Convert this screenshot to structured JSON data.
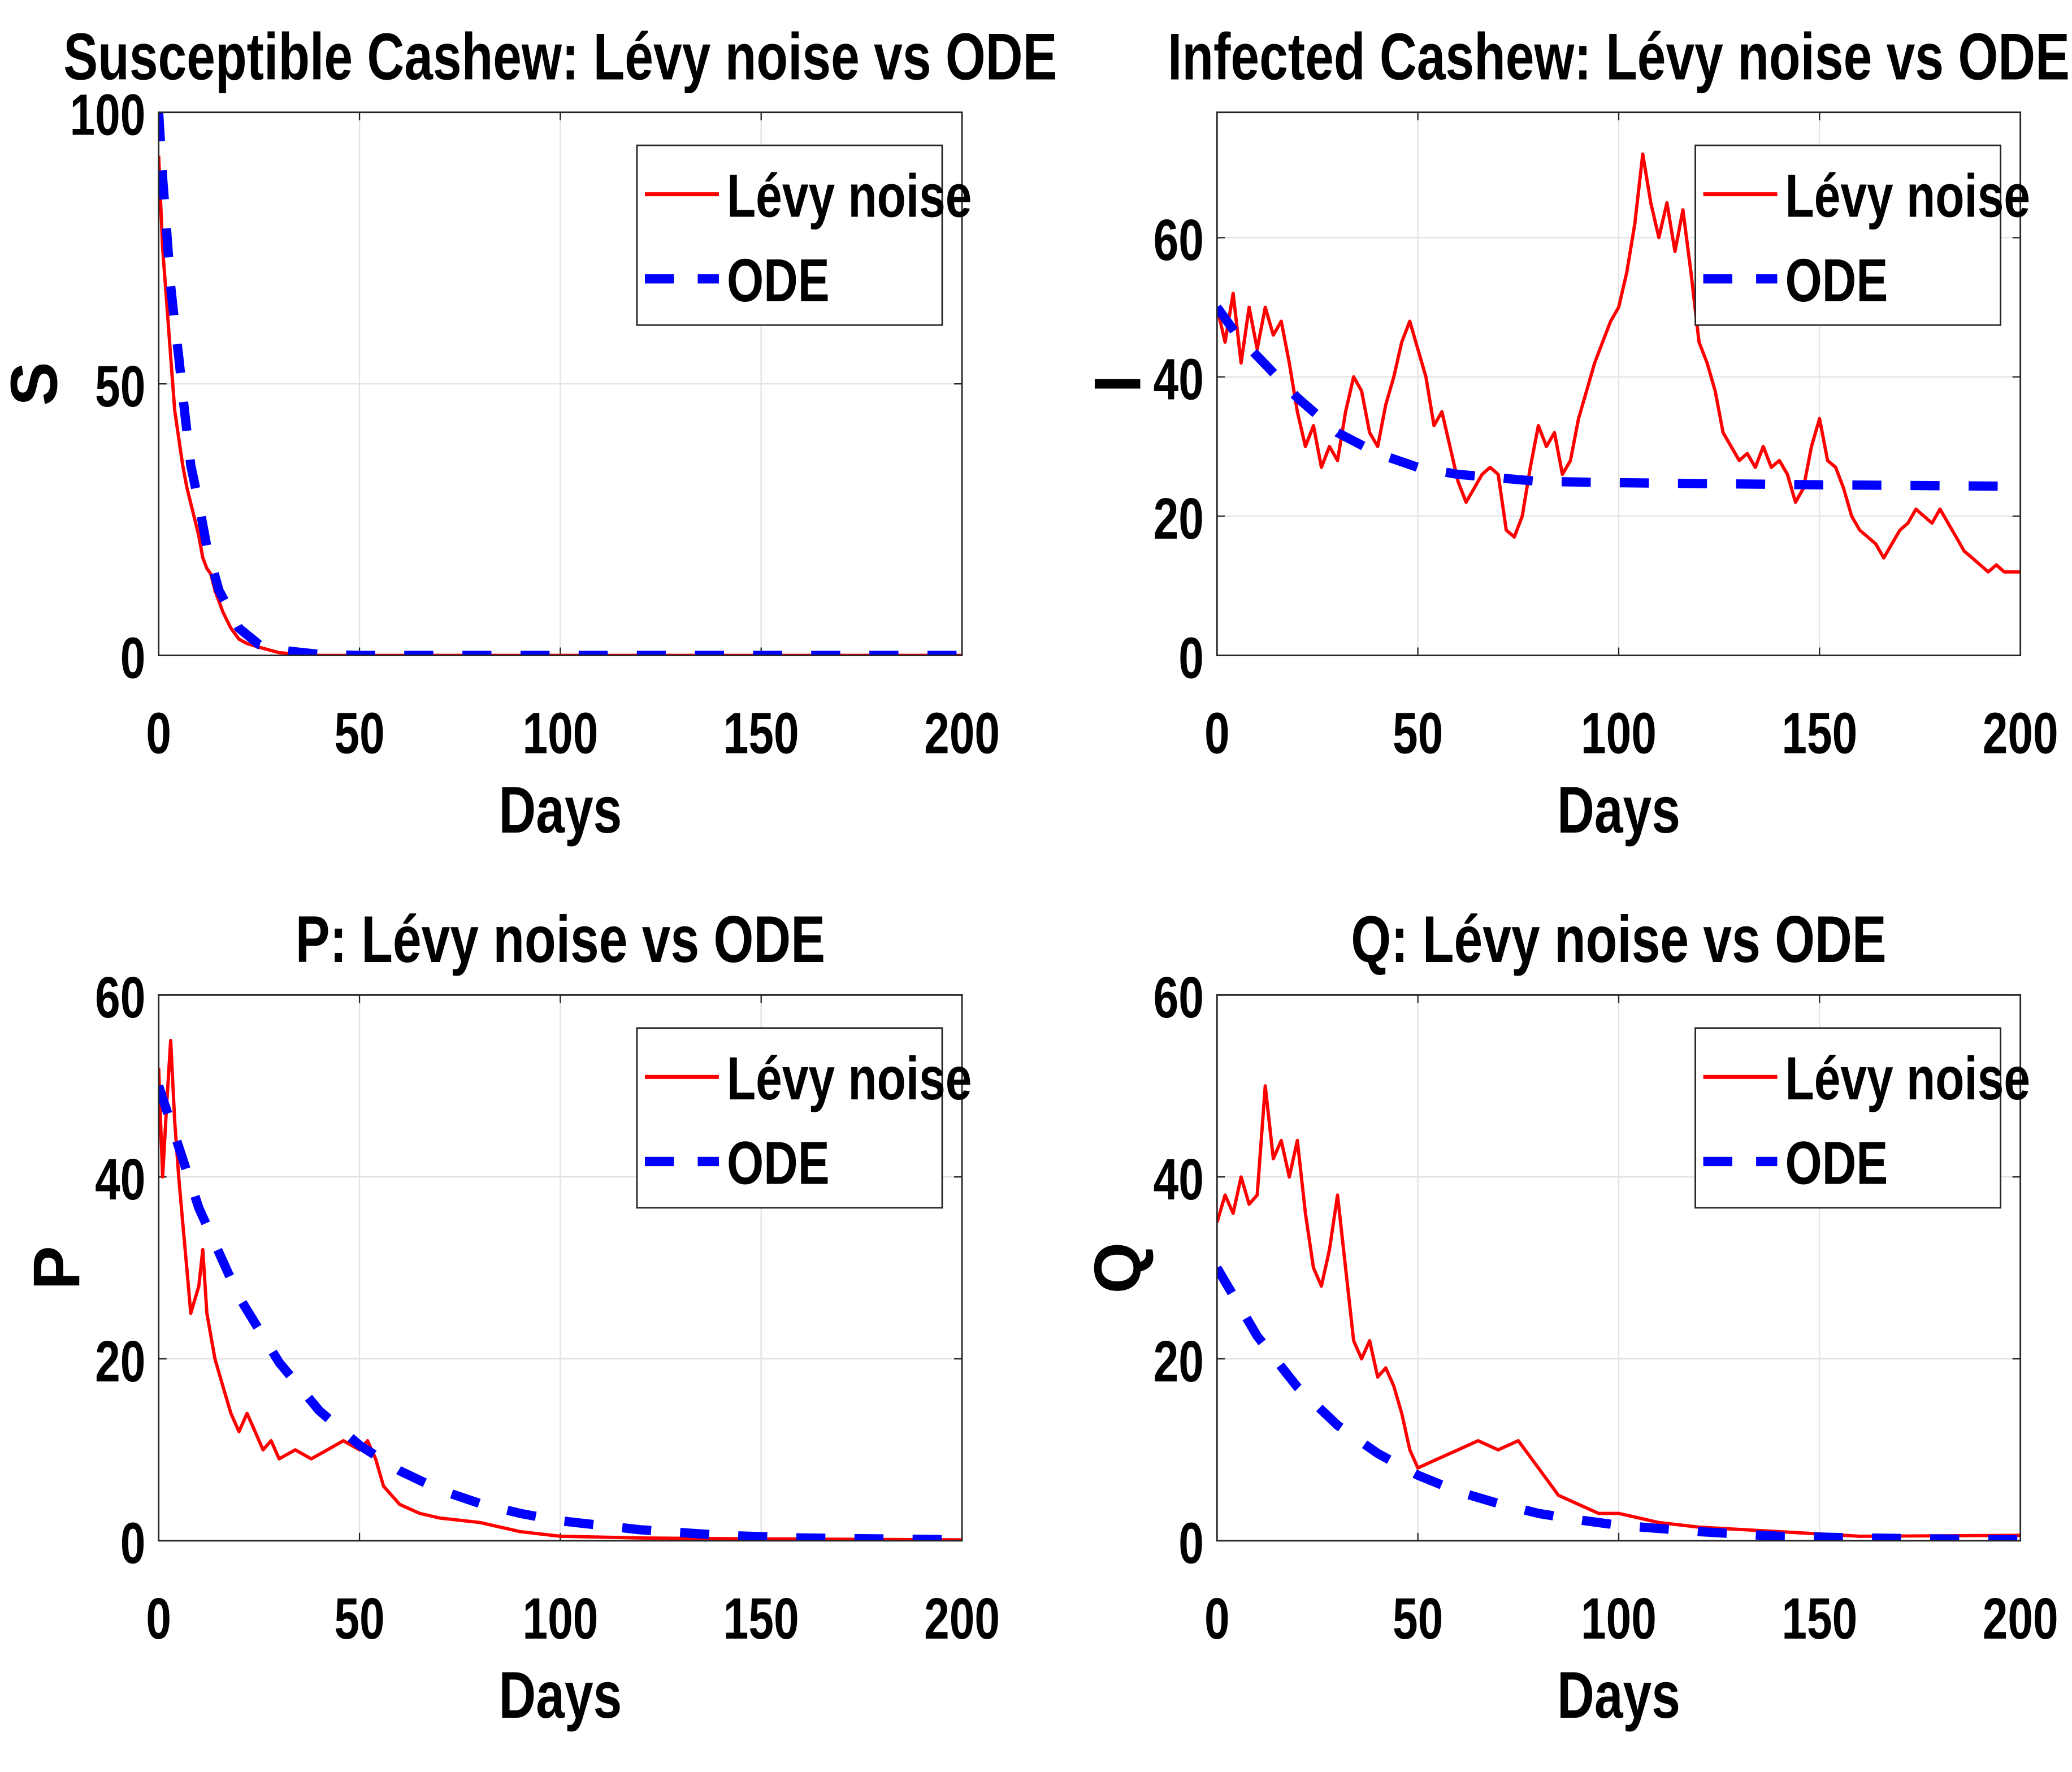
{
  "chart_data": [
    {
      "type": "line",
      "title": "Susceptible Cashew: Lévy noise vs ODE",
      "xlabel": "Days",
      "ylabel": "S",
      "xlim": [
        0,
        200
      ],
      "ylim": [
        0,
        100
      ],
      "xticks": [
        0,
        50,
        100,
        150,
        200
      ],
      "yticks": [
        0,
        50,
        100
      ],
      "grid": true,
      "legend_position": "top-right",
      "series": [
        {
          "name": "Lévy noise",
          "color": "#ff0000",
          "style": "solid",
          "x": [
            0,
            1,
            2,
            3,
            4,
            5,
            6,
            7,
            8,
            9,
            10,
            11,
            12,
            13,
            14,
            16,
            18,
            20,
            22,
            25,
            30,
            35,
            40,
            50,
            60,
            80,
            100,
            150,
            200
          ],
          "y": [
            92,
            75,
            65,
            55,
            45,
            40,
            35,
            31,
            28,
            25,
            22,
            18,
            16,
            15,
            12,
            8,
            5,
            3,
            2.2,
            1.5,
            0.5,
            0.2,
            0,
            0,
            0,
            0,
            0,
            0,
            0
          ]
        },
        {
          "name": "ODE",
          "color": "#0000ff",
          "style": "dashed",
          "x": [
            0,
            1,
            2,
            3,
            4,
            5,
            6,
            8,
            10,
            12,
            15,
            20,
            25,
            30,
            40,
            50,
            60,
            100,
            150,
            200
          ],
          "y": [
            100,
            88,
            78,
            68,
            61,
            55,
            48,
            35,
            28,
            20,
            12,
            5,
            2,
            1,
            0.2,
            0,
            0,
            0,
            0,
            0
          ]
        }
      ]
    },
    {
      "type": "line",
      "title": "Infected Cashew: Lévy noise vs ODE",
      "xlabel": "Days",
      "ylabel": "I",
      "xlim": [
        0,
        200
      ],
      "ylim": [
        0,
        78
      ],
      "xticks": [
        0,
        50,
        100,
        150,
        200
      ],
      "yticks": [
        0,
        20,
        40,
        60
      ],
      "grid": true,
      "legend_position": "top-right",
      "series": [
        {
          "name": "Lévy noise",
          "color": "#ff0000",
          "style": "solid",
          "x": [
            0,
            2,
            4,
            6,
            8,
            10,
            12,
            14,
            16,
            18,
            20,
            22,
            24,
            26,
            28,
            30,
            32,
            34,
            36,
            38,
            40,
            42,
            44,
            46,
            48,
            50,
            52,
            54,
            56,
            58,
            60,
            62,
            64,
            66,
            68,
            70,
            72,
            74,
            76,
            78,
            80,
            82,
            84,
            86,
            88,
            90,
            92,
            94,
            96,
            98,
            100,
            102,
            104,
            106,
            108,
            110,
            112,
            114,
            116,
            118,
            120,
            122,
            124,
            126,
            128,
            130,
            132,
            134,
            136,
            138,
            140,
            142,
            144,
            146,
            148,
            150,
            152,
            154,
            156,
            158,
            160,
            162,
            164,
            166,
            168,
            170,
            172,
            174,
            176,
            178,
            180,
            182,
            184,
            186,
            188,
            190,
            192,
            194,
            196,
            198,
            200
          ],
          "y": [
            50,
            45,
            52,
            42,
            50,
            44,
            50,
            46,
            48,
            42,
            35,
            30,
            33,
            27,
            30,
            28,
            35,
            40,
            38,
            32,
            30,
            36,
            40,
            45,
            48,
            44,
            40,
            33,
            35,
            30,
            25,
            22,
            24,
            26,
            27,
            26,
            18,
            17,
            20,
            27,
            33,
            30,
            32,
            26,
            28,
            34,
            38,
            42,
            45,
            48,
            50,
            55,
            62,
            72,
            65,
            60,
            65,
            58,
            64,
            55,
            45,
            42,
            38,
            32,
            30,
            28,
            29,
            27,
            30,
            27,
            28,
            26,
            22,
            24,
            30,
            34,
            28,
            27,
            24,
            20,
            18,
            17,
            16,
            14,
            16,
            18,
            19,
            21,
            20,
            19,
            21,
            19,
            17,
            15,
            14,
            13,
            12,
            13,
            12,
            12,
            12
          ]
        },
        {
          "name": "ODE",
          "color": "#0000ff",
          "style": "dashed",
          "x": [
            0,
            5,
            10,
            15,
            20,
            30,
            40,
            50,
            60,
            70,
            80,
            100,
            150,
            200
          ],
          "y": [
            50,
            46,
            43,
            40,
            37,
            32,
            29,
            27,
            26,
            25.5,
            25,
            24.8,
            24.5,
            24.3
          ]
        }
      ]
    },
    {
      "type": "line",
      "title": "P: Lévy noise vs ODE",
      "xlabel": "Days",
      "ylabel": "P",
      "xlim": [
        0,
        200
      ],
      "ylim": [
        0,
        60
      ],
      "xticks": [
        0,
        50,
        100,
        150,
        200
      ],
      "yticks": [
        0,
        20,
        40,
        60
      ],
      "grid": true,
      "legend_position": "top-right",
      "series": [
        {
          "name": "Lévy noise",
          "color": "#ff0000",
          "style": "solid",
          "x": [
            0,
            1,
            2,
            3,
            4,
            5,
            6,
            7,
            8,
            10,
            11,
            12,
            14,
            16,
            18,
            20,
            22,
            24,
            26,
            28,
            30,
            34,
            38,
            42,
            46,
            50,
            52,
            54,
            56,
            58,
            60,
            65,
            70,
            80,
            90,
            100,
            120,
            150,
            200
          ],
          "y": [
            52,
            40,
            48,
            55,
            46,
            40,
            35,
            30,
            25,
            28,
            32,
            25,
            20,
            17,
            14,
            12,
            14,
            12,
            10,
            11,
            9,
            10,
            9,
            10,
            11,
            10,
            11,
            9,
            6,
            5,
            4,
            3,
            2.5,
            2,
            1,
            0.5,
            0.3,
            0.2,
            0.1
          ]
        },
        {
          "name": "ODE",
          "color": "#0000ff",
          "style": "dashed",
          "x": [
            0,
            10,
            20,
            30,
            40,
            50,
            60,
            70,
            80,
            90,
            100,
            120,
            140,
            160,
            180,
            200
          ],
          "y": [
            50,
            36.6,
            26.8,
            19.6,
            14.3,
            10.5,
            7.7,
            5.6,
            4.1,
            3.0,
            2.2,
            1.2,
            0.6,
            0.3,
            0.2,
            0.1
          ]
        }
      ]
    },
    {
      "type": "line",
      "title": "Q: Lévy noise vs ODE",
      "xlabel": "Days",
      "ylabel": "Q",
      "xlim": [
        0,
        200
      ],
      "ylim": [
        0,
        60
      ],
      "xticks": [
        0,
        50,
        100,
        150,
        200
      ],
      "yticks": [
        0,
        20,
        40,
        60
      ],
      "grid": true,
      "legend_position": "top-right",
      "series": [
        {
          "name": "Lévy noise",
          "color": "#ff0000",
          "style": "solid",
          "x": [
            0,
            2,
            4,
            6,
            8,
            10,
            12,
            14,
            16,
            18,
            20,
            22,
            24,
            26,
            28,
            30,
            32,
            34,
            36,
            38,
            40,
            42,
            44,
            46,
            48,
            50,
            55,
            60,
            65,
            70,
            75,
            80,
            85,
            90,
            95,
            100,
            110,
            120,
            140,
            160,
            200
          ],
          "y": [
            35,
            38,
            36,
            40,
            37,
            38,
            50,
            42,
            44,
            40,
            44,
            36,
            30,
            28,
            32,
            38,
            30,
            22,
            20,
            22,
            18,
            19,
            17,
            14,
            10,
            8,
            9,
            10,
            11,
            10,
            11,
            8,
            5,
            4,
            3,
            3,
            2,
            1.5,
            1,
            0.5,
            0.6
          ]
        },
        {
          "name": "ODE",
          "color": "#0000ff",
          "style": "dashed",
          "x": [
            0,
            10,
            20,
            30,
            40,
            50,
            60,
            70,
            80,
            90,
            100,
            120,
            140,
            160,
            200
          ],
          "y": [
            30,
            22.5,
            16.9,
            12.7,
            9.6,
            7.2,
            5.4,
            4.1,
            3.0,
            2.3,
            1.7,
            1.0,
            0.5,
            0.3,
            0.1
          ]
        }
      ]
    }
  ]
}
